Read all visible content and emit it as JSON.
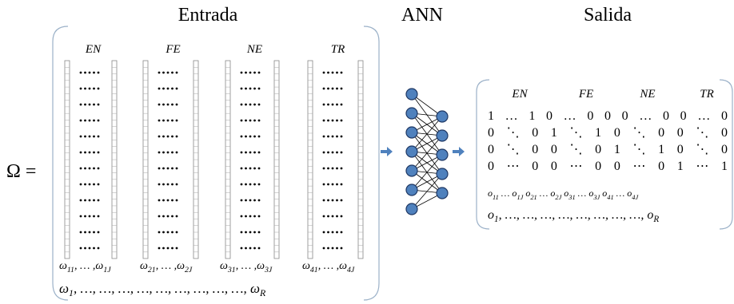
{
  "left_symbol": "Ω =",
  "input": {
    "title": "Entrada",
    "groups": [
      "EN",
      "FE",
      "NE",
      "TR"
    ],
    "group_labels": [
      [
        "ω",
        "11",
        ", … ,ω",
        "1J"
      ],
      [
        "ω",
        "21",
        ", … ,ω",
        "2J"
      ],
      [
        "ω",
        "31",
        ", … ,ω",
        "3J"
      ],
      [
        "ω",
        "41",
        ", … ,ω",
        "4J"
      ]
    ],
    "sample_label": [
      "ω",
      "1",
      ",  …,  …,  …,  …,  …,  …,  …,  …,  …,  ω",
      "R"
    ]
  },
  "network": {
    "title": "ANN"
  },
  "output": {
    "title": "Salida",
    "groups": [
      "EN",
      "FE",
      "NE",
      "TR"
    ],
    "rows": [
      "1  …  1  0  …  0  0  0  …  0  0 …  0",
      "0  ⋱  0  1  ⋱  1  0  ⋱  0  0  ⋱  0",
      "0  ⋱  0  0  ⋱  0  1  ⋱  1  0  ⋱  0",
      "0  ⋯  0  0  ⋯  0  0  ⋯  0  1  ⋯  1"
    ],
    "unit_label": [
      "o",
      "11",
      " … o",
      "1J",
      " o",
      "21",
      " … o",
      "2J",
      "  o",
      "31",
      " … o",
      "3J",
      "  o",
      "41",
      " … o",
      "4J"
    ],
    "sample_label": [
      "o",
      "1",
      ",  …,  …,  …,  …,  …,  …,  …,  …,  o",
      "R"
    ]
  }
}
